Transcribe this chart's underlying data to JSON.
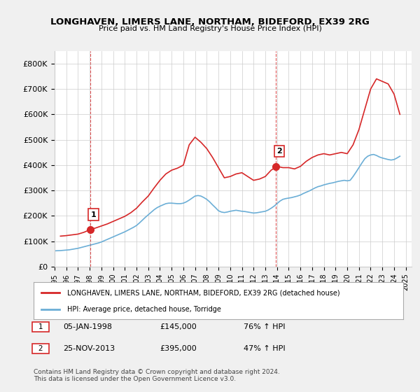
{
  "title": "LONGHAVEN, LIMERS LANE, NORTHAM, BIDEFORD, EX39 2RG",
  "subtitle": "Price paid vs. HM Land Registry's House Price Index (HPI)",
  "ylabel": "",
  "xlim_start": 1995.0,
  "xlim_end": 2025.5,
  "ylim": [
    0,
    850000
  ],
  "yticks": [
    0,
    100000,
    200000,
    300000,
    400000,
    500000,
    600000,
    700000,
    800000
  ],
  "ytick_labels": [
    "£0",
    "£100K",
    "£200K",
    "£300K",
    "£400K",
    "£500K",
    "£600K",
    "£700K",
    "£800K"
  ],
  "xticks": [
    1995,
    1996,
    1997,
    1998,
    1999,
    2000,
    2001,
    2002,
    2003,
    2004,
    2005,
    2006,
    2007,
    2008,
    2009,
    2010,
    2011,
    2012,
    2013,
    2014,
    2015,
    2016,
    2017,
    2018,
    2019,
    2020,
    2021,
    2022,
    2023,
    2024,
    2025
  ],
  "sale1_x": 1998.03,
  "sale1_y": 145000,
  "sale1_label": "1",
  "sale2_x": 2013.9,
  "sale2_y": 395000,
  "sale2_label": "2",
  "hpi_color": "#6baed6",
  "price_color": "#d62728",
  "vline_color": "#d62728",
  "bg_color": "#f0f0f0",
  "plot_bg": "#ffffff",
  "legend_label1": "LONGHAVEN, LIMERS LANE, NORTHAM, BIDEFORD, EX39 2RG (detached house)",
  "legend_label2": "HPI: Average price, detached house, Torridge",
  "table_row1": [
    "1",
    "05-JAN-1998",
    "£145,000",
    "76% ↑ HPI"
  ],
  "table_row2": [
    "2",
    "25-NOV-2013",
    "£395,000",
    "47% ↑ HPI"
  ],
  "footer": "Contains HM Land Registry data © Crown copyright and database right 2024.\nThis data is licensed under the Open Government Licence v3.0.",
  "hpi_data_x": [
    1995.0,
    1995.25,
    1995.5,
    1995.75,
    1996.0,
    1996.25,
    1996.5,
    1996.75,
    1997.0,
    1997.25,
    1997.5,
    1997.75,
    1998.0,
    1998.25,
    1998.5,
    1998.75,
    1999.0,
    1999.25,
    1999.5,
    1999.75,
    2000.0,
    2000.25,
    2000.5,
    2000.75,
    2001.0,
    2001.25,
    2001.5,
    2001.75,
    2002.0,
    2002.25,
    2002.5,
    2002.75,
    2003.0,
    2003.25,
    2003.5,
    2003.75,
    2004.0,
    2004.25,
    2004.5,
    2004.75,
    2005.0,
    2005.25,
    2005.5,
    2005.75,
    2006.0,
    2006.25,
    2006.5,
    2006.75,
    2007.0,
    2007.25,
    2007.5,
    2007.75,
    2008.0,
    2008.25,
    2008.5,
    2008.75,
    2009.0,
    2009.25,
    2009.5,
    2009.75,
    2010.0,
    2010.25,
    2010.5,
    2010.75,
    2011.0,
    2011.25,
    2011.5,
    2011.75,
    2012.0,
    2012.25,
    2012.5,
    2012.75,
    2013.0,
    2013.25,
    2013.5,
    2013.75,
    2014.0,
    2014.25,
    2014.5,
    2014.75,
    2015.0,
    2015.25,
    2015.5,
    2015.75,
    2016.0,
    2016.25,
    2016.5,
    2016.75,
    2017.0,
    2017.25,
    2017.5,
    2017.75,
    2018.0,
    2018.25,
    2018.5,
    2018.75,
    2019.0,
    2019.25,
    2019.5,
    2019.75,
    2020.0,
    2020.25,
    2020.5,
    2020.75,
    2021.0,
    2021.25,
    2021.5,
    2021.75,
    2022.0,
    2022.25,
    2022.5,
    2022.75,
    2023.0,
    2023.25,
    2023.5,
    2023.75,
    2024.0,
    2024.25,
    2024.5
  ],
  "hpi_data_y": [
    62000,
    62500,
    63000,
    64000,
    65000,
    66000,
    68000,
    70000,
    72000,
    75000,
    78000,
    81000,
    84000,
    87000,
    90000,
    93000,
    97000,
    102000,
    107000,
    112000,
    117000,
    122000,
    127000,
    132000,
    137000,
    143000,
    149000,
    155000,
    162000,
    172000,
    183000,
    194000,
    204000,
    214000,
    224000,
    232000,
    238000,
    243000,
    248000,
    250000,
    250000,
    249000,
    248000,
    248000,
    250000,
    255000,
    262000,
    270000,
    278000,
    280000,
    278000,
    272000,
    265000,
    255000,
    243000,
    232000,
    220000,
    215000,
    213000,
    215000,
    218000,
    220000,
    222000,
    220000,
    218000,
    217000,
    215000,
    213000,
    211000,
    212000,
    214000,
    216000,
    218000,
    223000,
    230000,
    238000,
    248000,
    258000,
    265000,
    268000,
    270000,
    272000,
    275000,
    278000,
    282000,
    288000,
    293000,
    298000,
    304000,
    310000,
    315000,
    318000,
    322000,
    325000,
    328000,
    330000,
    333000,
    336000,
    338000,
    340000,
    338000,
    340000,
    355000,
    372000,
    390000,
    408000,
    425000,
    435000,
    440000,
    442000,
    438000,
    432000,
    428000,
    425000,
    422000,
    420000,
    422000,
    428000,
    435000
  ],
  "price_data_x": [
    1995.5,
    1996.0,
    1996.5,
    1997.0,
    1997.5,
    1998.0,
    1998.5,
    1999.0,
    1999.5,
    2000.0,
    2000.5,
    2001.0,
    2001.5,
    2002.0,
    2002.5,
    2003.0,
    2003.5,
    2004.0,
    2004.5,
    2005.0,
    2005.5,
    2006.0,
    2006.5,
    2007.0,
    2007.5,
    2008.0,
    2008.5,
    2009.0,
    2009.5,
    2010.0,
    2010.5,
    2011.0,
    2011.5,
    2012.0,
    2012.5,
    2013.0,
    2013.5,
    2014.0,
    2014.5,
    2015.0,
    2015.5,
    2016.0,
    2016.5,
    2017.0,
    2017.5,
    2018.0,
    2018.5,
    2019.0,
    2019.5,
    2020.0,
    2020.5,
    2021.0,
    2021.5,
    2022.0,
    2022.5,
    2023.0,
    2023.5,
    2024.0,
    2024.5
  ],
  "price_data_y": [
    120000,
    122000,
    125000,
    128000,
    135000,
    145000,
    152000,
    160000,
    168000,
    178000,
    188000,
    198000,
    212000,
    230000,
    255000,
    278000,
    310000,
    340000,
    365000,
    380000,
    388000,
    400000,
    480000,
    510000,
    490000,
    465000,
    430000,
    390000,
    350000,
    355000,
    365000,
    370000,
    355000,
    340000,
    345000,
    355000,
    380000,
    395000,
    390000,
    390000,
    385000,
    395000,
    415000,
    430000,
    440000,
    445000,
    440000,
    445000,
    450000,
    445000,
    480000,
    540000,
    620000,
    700000,
    740000,
    730000,
    720000,
    680000,
    600000
  ]
}
